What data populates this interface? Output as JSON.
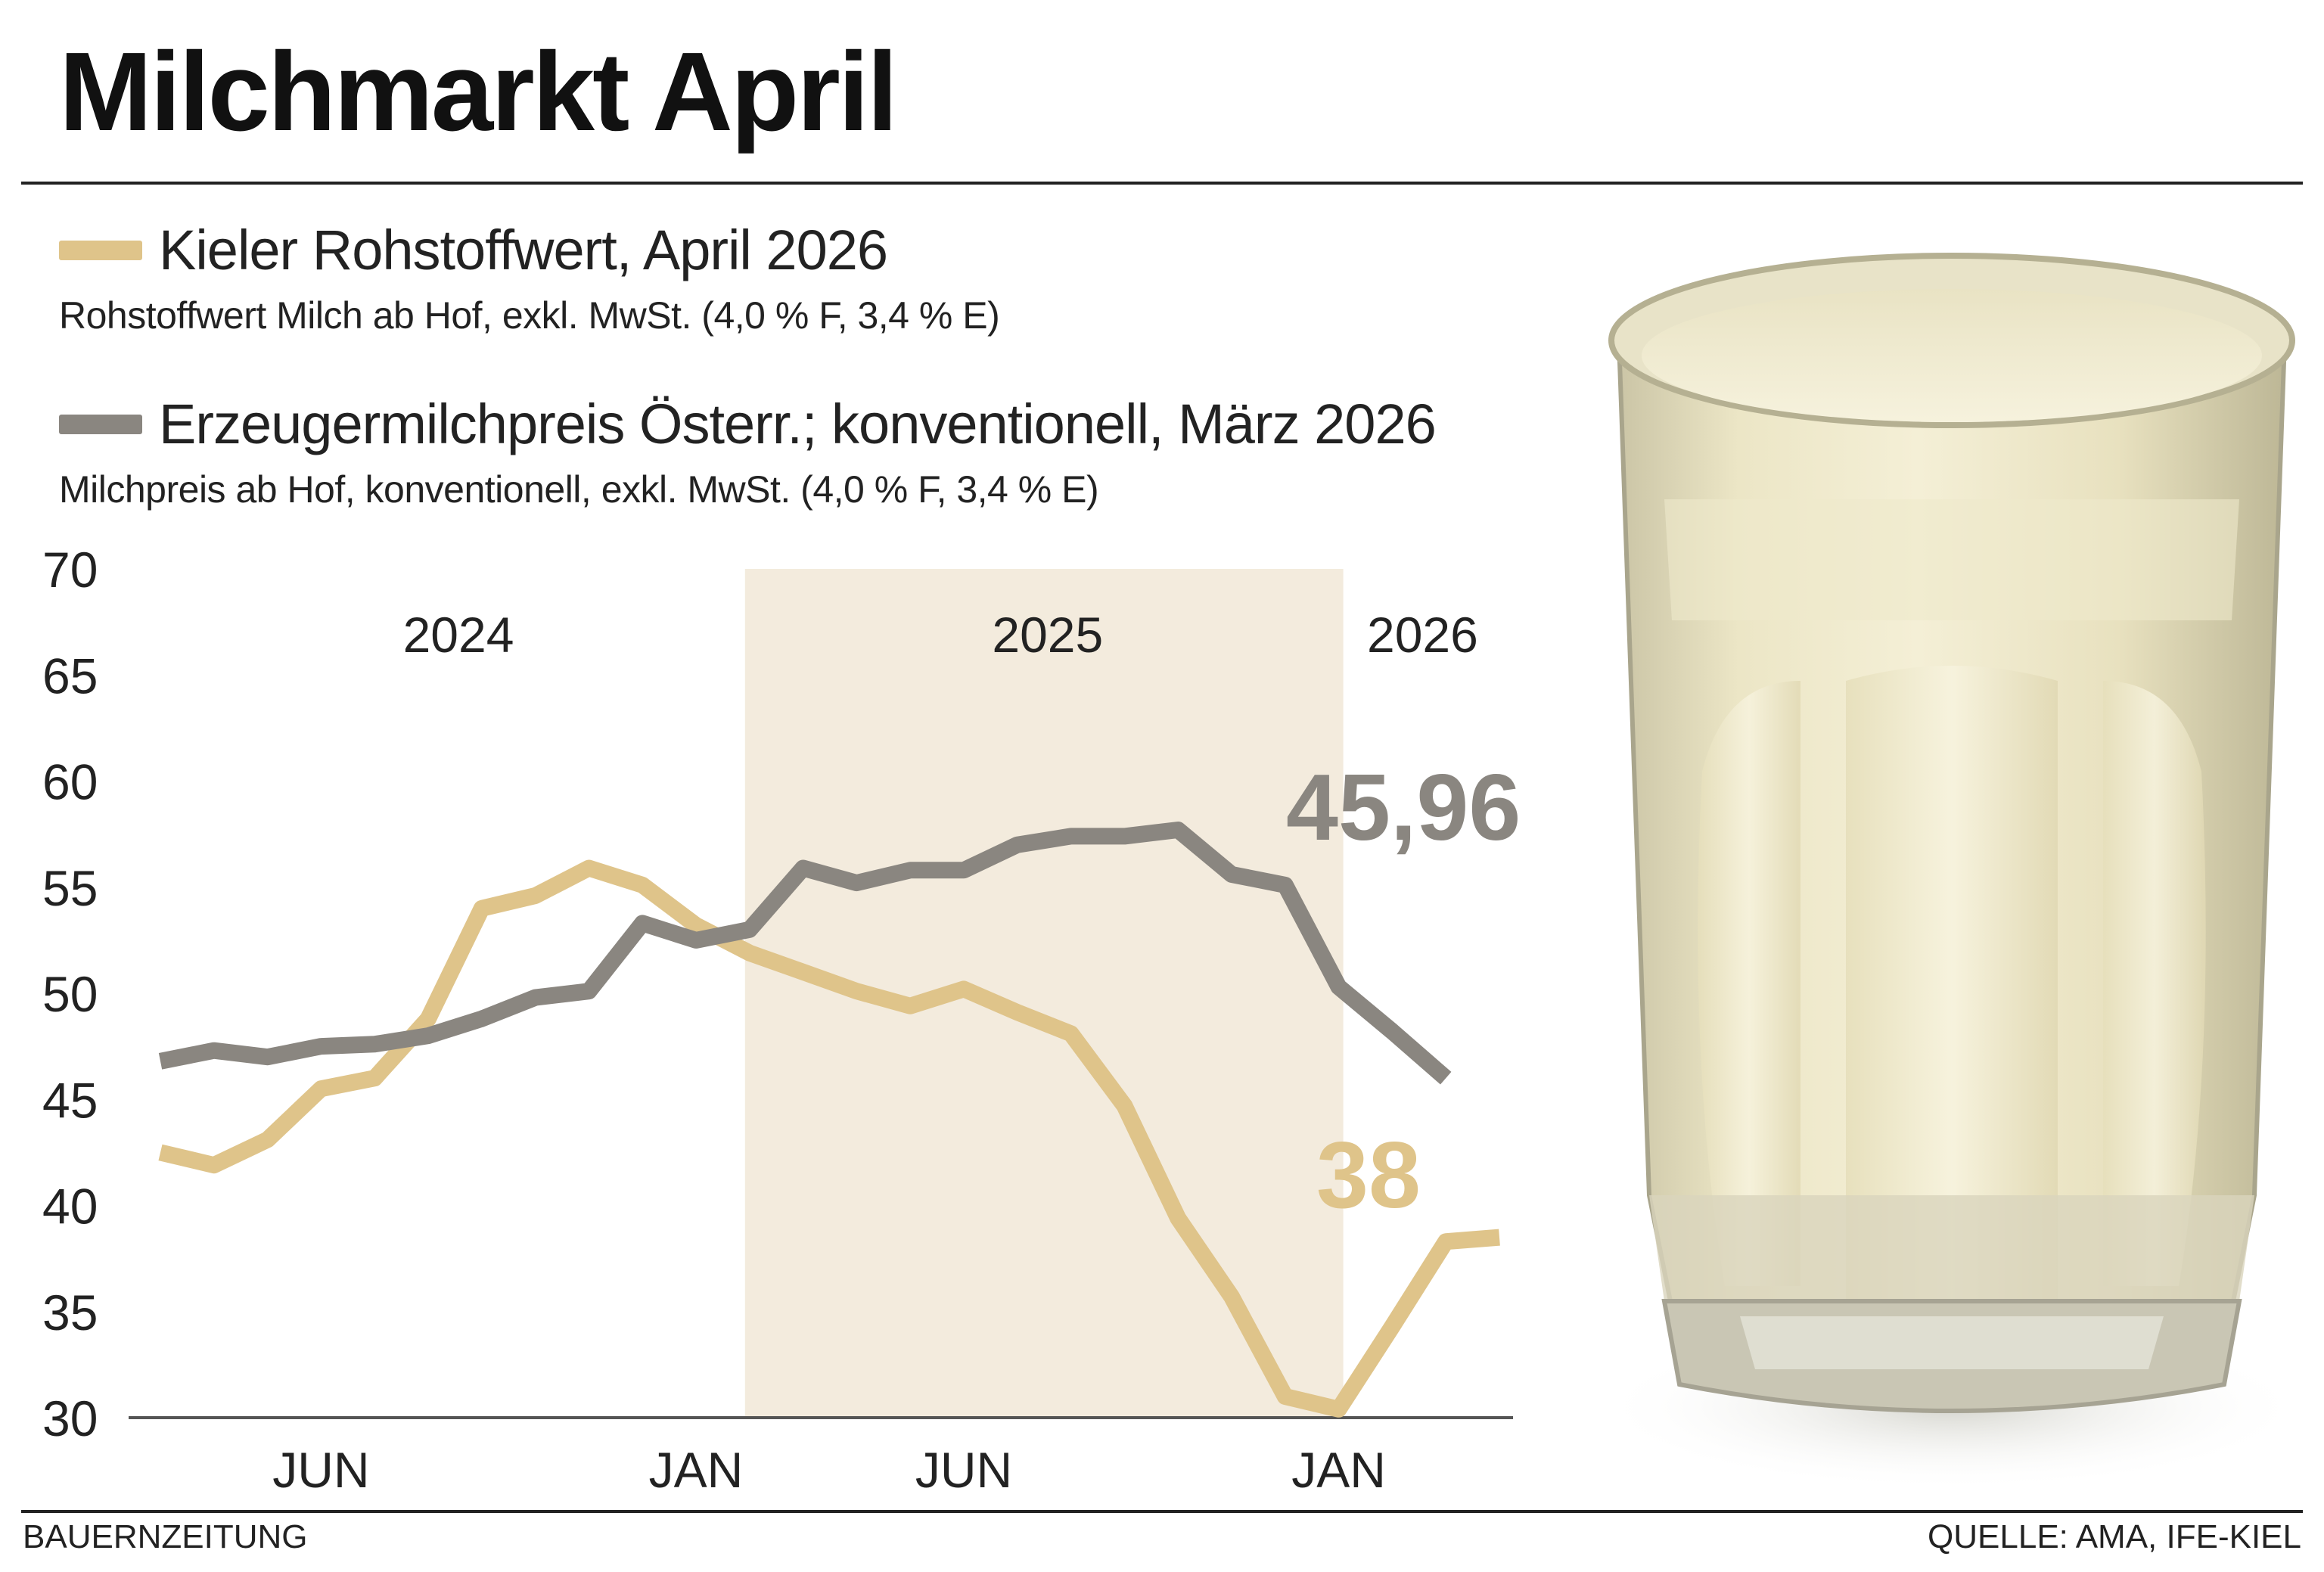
{
  "header": {
    "title": "Milchmarkt April"
  },
  "legend": [
    {
      "title": "Kieler Rohstoffwert, April 2026",
      "subtitle": "Rohstoffwert Milch ab Hof, exkl. MwSt. (4,0 % F, 3,4 % E)",
      "color": "#dfc48a"
    },
    {
      "title": "Erzeugermilchpreis Österr.; konventionell, März 2026",
      "subtitle": "Milchpreis ab Hof, konventionell, exkl. MwSt. (4,0 % F, 3,4 % E)",
      "color": "#8a8680"
    }
  ],
  "footer": {
    "left": "BAUERNZEITUNG",
    "right": "QUELLE: AMA, IFE-KIEL"
  },
  "illustration": {
    "icon": "milk-glass-icon"
  },
  "chart_data": {
    "type": "line",
    "ylim": [
      30,
      70
    ],
    "yticks": [
      30,
      35,
      40,
      45,
      50,
      55,
      60,
      65,
      70
    ],
    "ytick_labels": [
      "30",
      "35",
      "40",
      "45",
      "50",
      "55",
      "60",
      "65",
      "70"
    ],
    "x": [
      "2024-01",
      "2024-02",
      "2024-03",
      "2024-04",
      "2024-05",
      "2024-06",
      "2024-07",
      "2024-08",
      "2024-09",
      "2024-10",
      "2024-11",
      "2024-12",
      "2025-01",
      "2025-02",
      "2025-03",
      "2025-04",
      "2025-05",
      "2025-06",
      "2025-07",
      "2025-08",
      "2025-09",
      "2025-10",
      "2025-11",
      "2025-12",
      "2026-01",
      "2026-02",
      "2026-03",
      "2026-04"
    ],
    "xticks": [
      {
        "at": "2024-04",
        "label": "JUN"
      },
      {
        "at": "2024-11",
        "label": "JAN"
      },
      {
        "at": "2025-04",
        "label": "JUN"
      },
      {
        "at": "2025-11",
        "label": "JAN"
      }
    ],
    "year_labels": [
      {
        "at": "2024-06",
        "label": "2024"
      },
      {
        "at": "2025-05",
        "label": "2025"
      },
      {
        "at": "2025-12",
        "label": "2026"
      }
    ],
    "shaded_range": [
      "2024-12",
      "2025-11"
    ],
    "shade_color": "#f3ebdd",
    "series": [
      {
        "color": "#dfc48a",
        "values": [
          42.5,
          41.9,
          43.1,
          45.5,
          46.0,
          48.8,
          54.0,
          54.6,
          55.9,
          55.1,
          53.2,
          51.9,
          51.0,
          50.1,
          49.4,
          50.2,
          49.1,
          48.1,
          44.7,
          39.4,
          35.7,
          31.0,
          30.4,
          34.3,
          38.3,
          38.5,
          null,
          null
        ],
        "end_label": "38"
      },
      {
        "color": "#8a8680",
        "values": [
          46.8,
          47.3,
          47.0,
          47.5,
          47.6,
          48.0,
          48.8,
          49.8,
          50.1,
          53.3,
          52.5,
          53.0,
          55.9,
          55.2,
          55.8,
          55.8,
          57.0,
          57.4,
          57.4,
          57.7,
          55.6,
          55.1,
          50.3,
          48.2,
          46.0,
          null,
          null,
          null
        ],
        "end_label": "45,96"
      }
    ]
  }
}
